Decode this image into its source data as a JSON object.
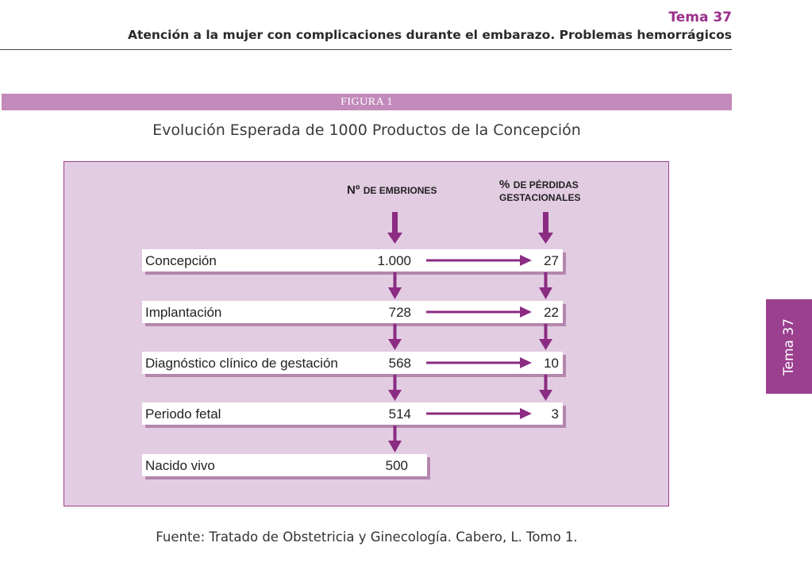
{
  "header": {
    "tema": "Tema 37",
    "subtitle": "Atención a la mujer con complicaciones durante el embarazo. Problemas hemorrágicos"
  },
  "figure": {
    "label": "FIGURA 1",
    "title": "Evolución Esperada de 1000 Productos de la Concepción"
  },
  "diagram": {
    "col_embriones": {
      "prefix": "Nº",
      "rest": "DE EMBRIONES"
    },
    "col_perdidas": {
      "line1_prefix": "%",
      "line1_rest": "DE PÉRDIDAS",
      "line2": "GESTACIONALES"
    },
    "stages": [
      {
        "label": "Concepción",
        "embriones": "1.000",
        "perdidas": "27"
      },
      {
        "label": "Implantación",
        "embriones": "728",
        "perdidas": "22"
      },
      {
        "label": "Diagnóstico clínico de gestación",
        "embriones": "568",
        "perdidas": "10"
      },
      {
        "label": "Periodo fetal",
        "embriones": "514",
        "perdidas": "3"
      },
      {
        "label": "Nacido vivo",
        "embriones": "500"
      }
    ]
  },
  "side_tab": {
    "label": "Tema 37"
  },
  "source": "Fuente: Tratado de Obstetricia y Ginecología. Cabero, L. Tomo 1.",
  "colors": {
    "accent": "#9b3f8f",
    "panel_bg": "#e2cce2",
    "bar_bg": "#c28bbb"
  }
}
